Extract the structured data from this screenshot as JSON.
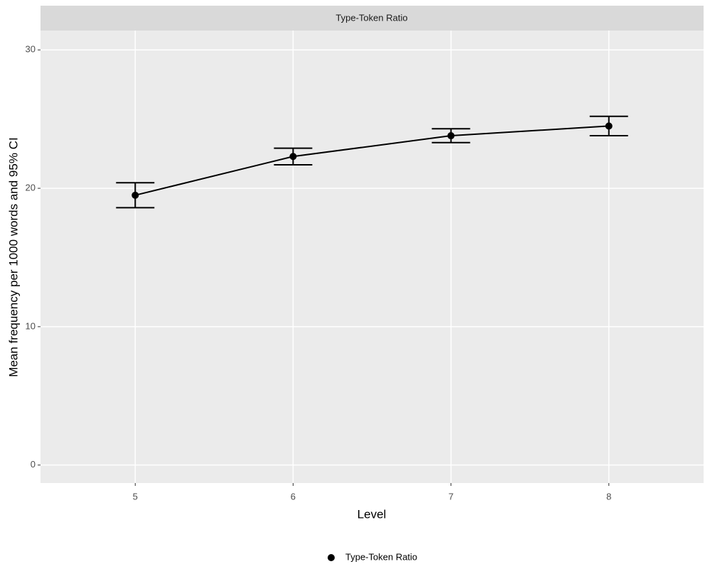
{
  "chart_data": {
    "type": "line",
    "title": "Type-Token Ratio",
    "x_label": "Level",
    "y_label": "Mean frequency per 1000 words and 95% CI",
    "categories": [
      "5",
      "6",
      "7",
      "8"
    ],
    "series": [
      {
        "name": "Type-Token Ratio",
        "color": "#000000",
        "values": [
          19.5,
          22.3,
          23.8,
          24.5
        ],
        "lower": [
          18.6,
          21.7,
          23.3,
          23.8
        ],
        "upper": [
          20.4,
          22.9,
          24.3,
          25.2
        ]
      }
    ],
    "ylim": [
      -1.3,
      31.4
    ],
    "yticks": [
      0,
      10,
      20,
      30
    ],
    "grid": true,
    "legend": "bottom"
  }
}
